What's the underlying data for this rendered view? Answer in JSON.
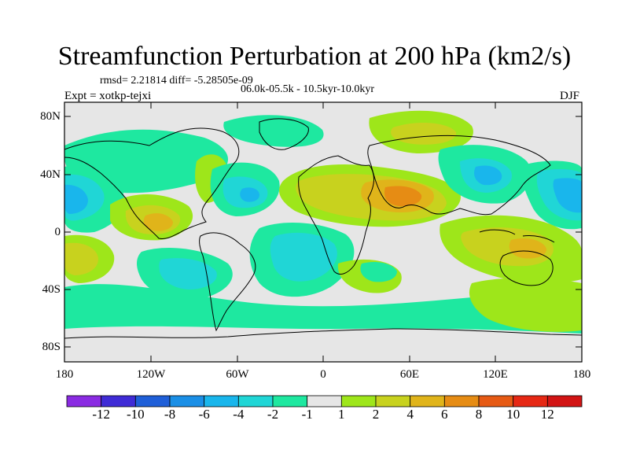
{
  "title": "Streamfunction Perturbation at 200 hPa (km2/s)",
  "stats": {
    "rmsd_line": "rmsd= 2.21814 diff= -5.28505e-09",
    "period_line": "06.0k-05.5k - 10.5kyr-10.0kyr",
    "expt_line": "Expt = xotkp-tejxi",
    "season": "DJF"
  },
  "axes": {
    "lat_labels": [
      "80N",
      "40N",
      "0",
      "40S",
      "80S"
    ],
    "lon_labels": [
      "180",
      "120W",
      "60W",
      "0",
      "60E",
      "120E",
      "180"
    ]
  },
  "colorbar": {
    "labels": [
      "-12",
      "-10",
      "-8",
      "-6",
      "-4",
      "-2",
      "-1",
      "1",
      "2",
      "4",
      "6",
      "8",
      "10",
      "12"
    ],
    "colors": [
      "#8a2be2",
      "#3f2bd6",
      "#1f5fd8",
      "#1a8fe6",
      "#19b6ec",
      "#20d6d6",
      "#1ee8a0",
      "#e6e6e6",
      "#9ee61a",
      "#c8d21e",
      "#e0b41a",
      "#e68c14",
      "#e65a14",
      "#e62814",
      "#d21414"
    ]
  },
  "map_colors": {
    "ocean_bg": "#e6e6e6",
    "coast": "#000000"
  }
}
